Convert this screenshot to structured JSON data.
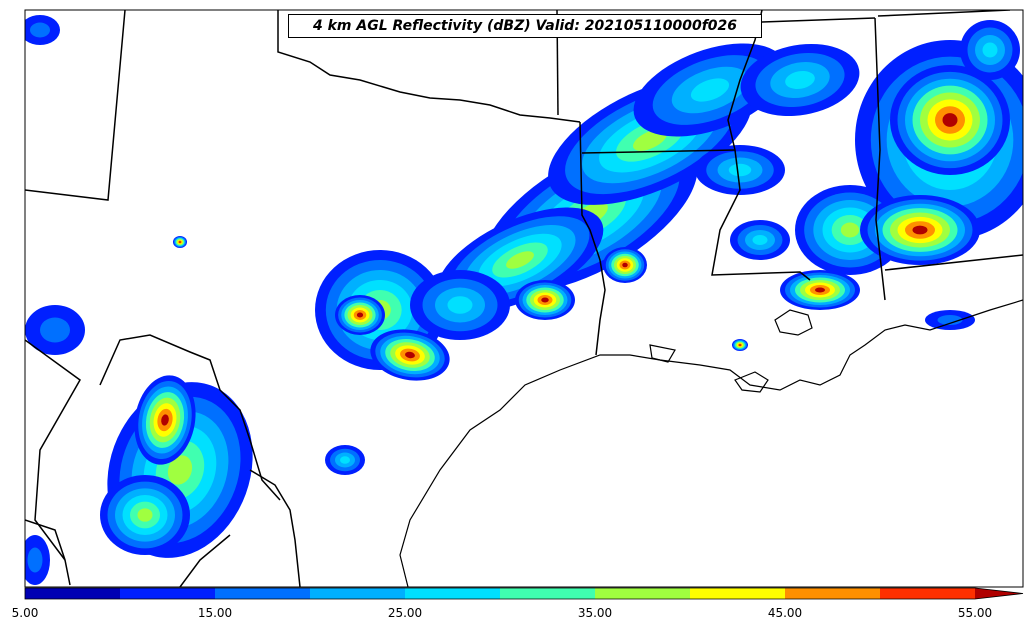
{
  "map": {
    "title": "4 km AGL Reflectivity (dBZ) Valid: 202105110000f026",
    "region": "South-central United States and Gulf Coast",
    "variable": "reflectivity-dbz"
  },
  "colorbar": {
    "levels": [
      5,
      10,
      15,
      20,
      25,
      30,
      35,
      40,
      45,
      50,
      55
    ],
    "colors": [
      "#0000b3",
      "#0020ff",
      "#0070ff",
      "#00b0ff",
      "#00e0ff",
      "#40ffb0",
      "#a0ff40",
      "#ffff00",
      "#ff9000",
      "#ff3000",
      "#b00000"
    ],
    "extend_color": "#800000",
    "ticks": [
      "5.00",
      "15.00",
      "25.00",
      "35.00",
      "45.00",
      "55.00"
    ]
  }
}
